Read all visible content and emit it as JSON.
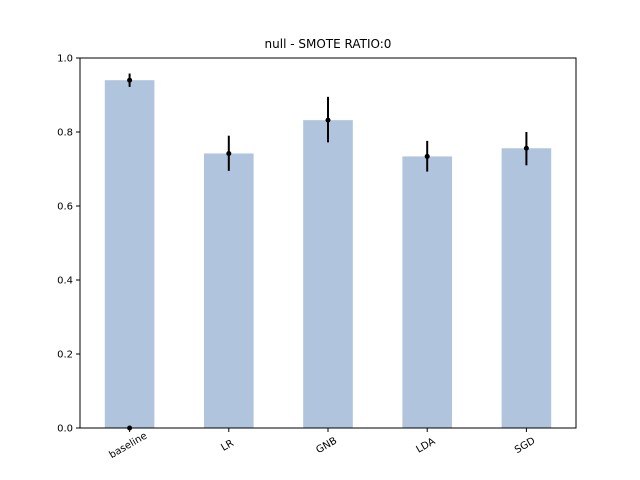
{
  "chart_data": {
    "type": "bar",
    "title": "null - SMOTE RATIO:0",
    "xlabel": "",
    "ylabel": "",
    "categories": [
      "baseline",
      "LR",
      "GNB",
      "LDA",
      "SGD"
    ],
    "values": [
      0.94,
      0.742,
      0.832,
      0.734,
      0.756
    ],
    "error_low": [
      0.922,
      0.695,
      0.772,
      0.693,
      0.71
    ],
    "error_high": [
      0.958,
      0.79,
      0.895,
      0.776,
      0.8
    ],
    "extra_points": [
      {
        "category": "baseline",
        "y": 0.0
      }
    ],
    "ylim": [
      0,
      1.0
    ],
    "yticks": [
      0.0,
      0.2,
      0.4,
      0.6,
      0.8,
      1.0
    ],
    "ytick_labels": [
      "0.0",
      "0.2",
      "0.4",
      "0.6",
      "0.8",
      "1.0"
    ],
    "xtick_rotation_deg": 30,
    "bar_color": "#b0c4de",
    "errorbar_color": "#000000",
    "grid": false,
    "legend": "none"
  }
}
